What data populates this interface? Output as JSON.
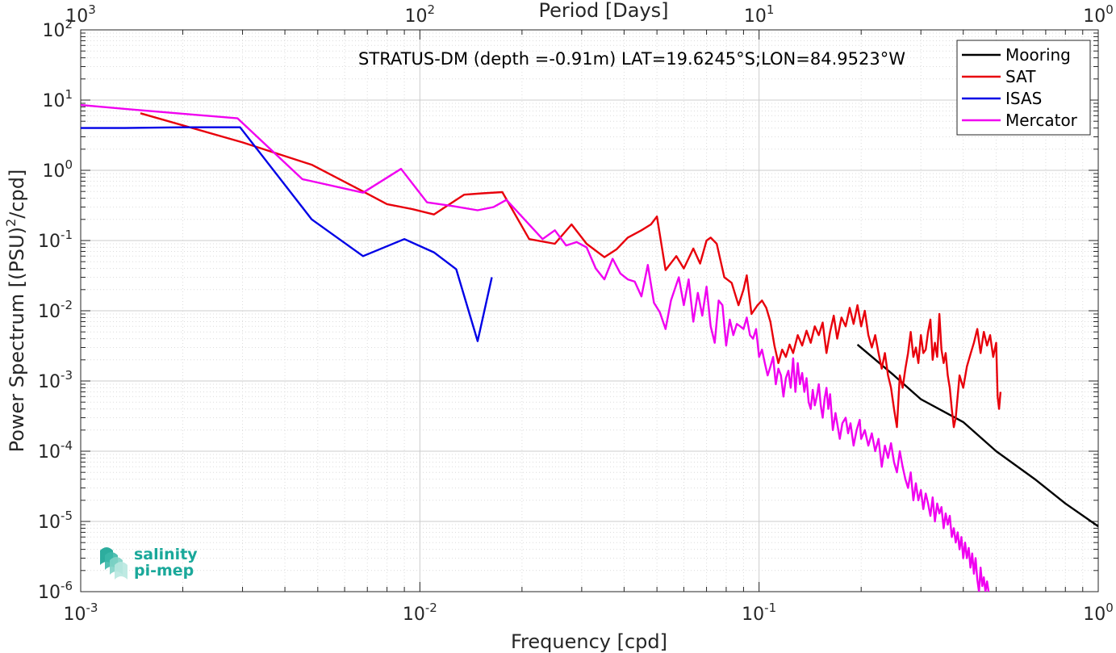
{
  "chart_data": {
    "type": "line",
    "title": "STRATUS-DM (depth =-0.91m) LAT=19.6245°S;LON=84.9523°W",
    "xlabel": "Frequency [cpd]",
    "xlabel_top": "Period [Days]",
    "ylabel": "Power Spectrum [(PSU)^2/cpd]",
    "ylabel_parts": [
      "Power Spectrum [(PSU)",
      "2",
      "/cpd]"
    ],
    "xscale": "log",
    "yscale": "log",
    "xlim": [
      0.001,
      1
    ],
    "ylim": [
      1e-06,
      100
    ],
    "grid": true,
    "legend_position": "top-right",
    "x_ticks": [
      {
        "value": 0.001,
        "base": "10",
        "exp": "-3"
      },
      {
        "value": 0.01,
        "base": "10",
        "exp": "-2"
      },
      {
        "value": 0.1,
        "base": "10",
        "exp": "-1"
      },
      {
        "value": 1,
        "base": "10",
        "exp": "0"
      }
    ],
    "x_ticks_top": [
      {
        "value": 0.001,
        "base": "10",
        "exp": "3"
      },
      {
        "value": 0.01,
        "base": "10",
        "exp": "2"
      },
      {
        "value": 0.1,
        "base": "10",
        "exp": "1"
      },
      {
        "value": 1,
        "base": "10",
        "exp": "0"
      }
    ],
    "y_ticks": [
      {
        "value": 1e-06,
        "base": "10",
        "exp": "-6"
      },
      {
        "value": 1e-05,
        "base": "10",
        "exp": "-5"
      },
      {
        "value": 0.0001,
        "base": "10",
        "exp": "-4"
      },
      {
        "value": 0.001,
        "base": "10",
        "exp": "-3"
      },
      {
        "value": 0.01,
        "base": "10",
        "exp": "-2"
      },
      {
        "value": 0.1,
        "base": "10",
        "exp": "-1"
      },
      {
        "value": 1,
        "base": "10",
        "exp": "0"
      },
      {
        "value": 10,
        "base": "10",
        "exp": "1"
      },
      {
        "value": 100,
        "base": "10",
        "exp": "2"
      }
    ],
    "series": [
      {
        "name": "Mooring",
        "color": "#000000",
        "points": [
          [
            0.195,
            0.0033
          ],
          [
            0.25,
            0.0012
          ],
          [
            0.3,
            0.00055
          ],
          [
            0.4,
            0.00026
          ],
          [
            0.5,
            0.0001
          ],
          [
            0.65,
            4e-05
          ],
          [
            0.8,
            1.8e-05
          ],
          [
            1.0,
            8.5e-06
          ]
        ]
      },
      {
        "name": "SAT",
        "color": "#e8000b",
        "points": [
          [
            0.0015,
            6.5
          ],
          [
            0.003,
            2.5
          ],
          [
            0.0048,
            1.2
          ],
          [
            0.0068,
            0.5
          ],
          [
            0.008,
            0.33
          ],
          [
            0.0095,
            0.28
          ],
          [
            0.011,
            0.235
          ],
          [
            0.0135,
            0.45
          ],
          [
            0.0153,
            0.47
          ],
          [
            0.0175,
            0.49
          ],
          [
            0.021,
            0.105
          ],
          [
            0.025,
            0.09
          ],
          [
            0.028,
            0.17
          ],
          [
            0.031,
            0.09
          ],
          [
            0.035,
            0.058
          ],
          [
            0.038,
            0.075
          ],
          [
            0.041,
            0.11
          ],
          [
            0.045,
            0.14
          ],
          [
            0.048,
            0.17
          ],
          [
            0.05,
            0.22
          ],
          [
            0.053,
            0.038
          ],
          [
            0.057,
            0.06
          ],
          [
            0.06,
            0.04
          ],
          [
            0.064,
            0.077
          ],
          [
            0.067,
            0.047
          ],
          [
            0.07,
            0.1
          ],
          [
            0.072,
            0.11
          ],
          [
            0.075,
            0.09
          ],
          [
            0.079,
            0.03
          ],
          [
            0.083,
            0.025
          ],
          [
            0.087,
            0.012
          ],
          [
            0.09,
            0.02
          ],
          [
            0.092,
            0.032
          ],
          [
            0.095,
            0.009
          ],
          [
            0.099,
            0.012
          ],
          [
            0.102,
            0.014
          ],
          [
            0.105,
            0.011
          ],
          [
            0.108,
            0.007
          ],
          [
            0.111,
            0.0032
          ],
          [
            0.114,
            0.0018
          ],
          [
            0.117,
            0.0028
          ],
          [
            0.12,
            0.0022
          ],
          [
            0.123,
            0.0033
          ],
          [
            0.126,
            0.0025
          ],
          [
            0.13,
            0.0045
          ],
          [
            0.134,
            0.0032
          ],
          [
            0.138,
            0.0052
          ],
          [
            0.142,
            0.0035
          ],
          [
            0.146,
            0.006
          ],
          [
            0.15,
            0.0045
          ],
          [
            0.154,
            0.0068
          ],
          [
            0.158,
            0.0025
          ],
          [
            0.162,
            0.005
          ],
          [
            0.166,
            0.0085
          ],
          [
            0.17,
            0.004
          ],
          [
            0.175,
            0.008
          ],
          [
            0.18,
            0.006
          ],
          [
            0.185,
            0.011
          ],
          [
            0.19,
            0.0065
          ],
          [
            0.195,
            0.012
          ],
          [
            0.2,
            0.006
          ],
          [
            0.205,
            0.01
          ],
          [
            0.21,
            0.0045
          ],
          [
            0.215,
            0.003
          ],
          [
            0.22,
            0.0045
          ],
          [
            0.225,
            0.0025
          ],
          [
            0.23,
            0.0015
          ],
          [
            0.235,
            0.0025
          ],
          [
            0.24,
            0.0012
          ],
          [
            0.245,
            0.0008
          ],
          [
            0.25,
            0.0004
          ],
          [
            0.255,
            0.00022
          ],
          [
            0.26,
            0.0012
          ],
          [
            0.265,
            0.0008
          ],
          [
            0.27,
            0.0015
          ],
          [
            0.275,
            0.0025
          ],
          [
            0.28,
            0.005
          ],
          [
            0.285,
            0.0022
          ],
          [
            0.29,
            0.003
          ],
          [
            0.295,
            0.0018
          ],
          [
            0.3,
            0.0045
          ],
          [
            0.305,
            0.0025
          ],
          [
            0.31,
            0.0028
          ],
          [
            0.315,
            0.005
          ],
          [
            0.32,
            0.0075
          ],
          [
            0.325,
            0.002
          ],
          [
            0.33,
            0.0035
          ],
          [
            0.335,
            0.0022
          ],
          [
            0.34,
            0.009
          ],
          [
            0.345,
            0.0028
          ],
          [
            0.35,
            0.0018
          ],
          [
            0.355,
            0.0025
          ],
          [
            0.36,
            0.0012
          ],
          [
            0.365,
            0.0008
          ],
          [
            0.37,
            0.0004
          ],
          [
            0.375,
            0.00022
          ],
          [
            0.38,
            0.0003
          ],
          [
            0.39,
            0.0012
          ],
          [
            0.4,
            0.0008
          ],
          [
            0.41,
            0.0016
          ],
          [
            0.42,
            0.0024
          ],
          [
            0.43,
            0.0035
          ],
          [
            0.44,
            0.0055
          ],
          [
            0.45,
            0.0025
          ],
          [
            0.46,
            0.005
          ],
          [
            0.47,
            0.0032
          ],
          [
            0.48,
            0.0045
          ],
          [
            0.49,
            0.0022
          ],
          [
            0.5,
            0.0035
          ],
          [
            0.505,
            0.0006
          ],
          [
            0.51,
            0.0004
          ],
          [
            0.515,
            0.0007
          ]
        ]
      },
      {
        "name": "ISAS",
        "color": "#0000e6",
        "points": [
          [
            0.001,
            4.0
          ],
          [
            0.00135,
            4.0
          ],
          [
            0.002,
            4.1
          ],
          [
            0.00295,
            4.1
          ],
          [
            0.0048,
            0.2
          ],
          [
            0.0068,
            0.06
          ],
          [
            0.009,
            0.105
          ],
          [
            0.011,
            0.068
          ],
          [
            0.0128,
            0.039
          ],
          [
            0.0148,
            0.0037
          ],
          [
            0.0163,
            0.03
          ]
        ]
      },
      {
        "name": "Mercator",
        "color": "#f000f0",
        "points": [
          [
            0.001,
            8.5
          ],
          [
            0.00135,
            7.5
          ],
          [
            0.0029,
            5.5
          ],
          [
            0.0045,
            0.75
          ],
          [
            0.0068,
            0.48
          ],
          [
            0.0088,
            1.05
          ],
          [
            0.0105,
            0.35
          ],
          [
            0.0125,
            0.31
          ],
          [
            0.0148,
            0.27
          ],
          [
            0.0165,
            0.3
          ],
          [
            0.018,
            0.38
          ],
          [
            0.023,
            0.105
          ],
          [
            0.025,
            0.14
          ],
          [
            0.027,
            0.085
          ],
          [
            0.029,
            0.095
          ],
          [
            0.031,
            0.08
          ],
          [
            0.033,
            0.04
          ],
          [
            0.035,
            0.028
          ],
          [
            0.037,
            0.055
          ],
          [
            0.039,
            0.034
          ],
          [
            0.041,
            0.028
          ],
          [
            0.043,
            0.026
          ],
          [
            0.045,
            0.016
          ],
          [
            0.047,
            0.045
          ],
          [
            0.049,
            0.013
          ],
          [
            0.051,
            0.0095
          ],
          [
            0.053,
            0.0055
          ],
          [
            0.055,
            0.014
          ],
          [
            0.058,
            0.03
          ],
          [
            0.06,
            0.012
          ],
          [
            0.062,
            0.028
          ],
          [
            0.064,
            0.007
          ],
          [
            0.066,
            0.018
          ],
          [
            0.068,
            0.0085
          ],
          [
            0.07,
            0.022
          ],
          [
            0.072,
            0.006
          ],
          [
            0.074,
            0.0035
          ],
          [
            0.076,
            0.014
          ],
          [
            0.078,
            0.012
          ],
          [
            0.08,
            0.0032
          ],
          [
            0.082,
            0.0075
          ],
          [
            0.084,
            0.0045
          ],
          [
            0.086,
            0.0065
          ],
          [
            0.088,
            0.006
          ],
          [
            0.09,
            0.0055
          ],
          [
            0.092,
            0.008
          ],
          [
            0.094,
            0.0045
          ],
          [
            0.096,
            0.004
          ],
          [
            0.098,
            0.0055
          ],
          [
            0.1,
            0.0022
          ],
          [
            0.102,
            0.0028
          ],
          [
            0.104,
            0.0018
          ],
          [
            0.106,
            0.0012
          ],
          [
            0.108,
            0.0016
          ],
          [
            0.11,
            0.0022
          ],
          [
            0.112,
            0.0009
          ],
          [
            0.114,
            0.0015
          ],
          [
            0.116,
            0.0012
          ],
          [
            0.118,
            0.0006
          ],
          [
            0.12,
            0.0011
          ],
          [
            0.122,
            0.0014
          ],
          [
            0.124,
            0.0008
          ],
          [
            0.126,
            0.0021
          ],
          [
            0.128,
            0.0007
          ],
          [
            0.13,
            0.0018
          ],
          [
            0.132,
            0.0009
          ],
          [
            0.134,
            0.0013
          ],
          [
            0.136,
            0.0007
          ],
          [
            0.138,
            0.0011
          ],
          [
            0.14,
            0.0005
          ],
          [
            0.142,
            0.0004
          ],
          [
            0.144,
            0.00075
          ],
          [
            0.146,
            0.00045
          ],
          [
            0.148,
            0.0006
          ],
          [
            0.15,
            0.0009
          ],
          [
            0.152,
            0.00045
          ],
          [
            0.154,
            0.0003
          ],
          [
            0.156,
            0.00055
          ],
          [
            0.158,
            0.0008
          ],
          [
            0.16,
            0.0004
          ],
          [
            0.162,
            0.00065
          ],
          [
            0.165,
            0.0002
          ],
          [
            0.168,
            0.00035
          ],
          [
            0.17,
            0.00025
          ],
          [
            0.173,
            0.00015
          ],
          [
            0.176,
            0.00025
          ],
          [
            0.18,
            0.0003
          ],
          [
            0.183,
            0.00018
          ],
          [
            0.186,
            0.00025
          ],
          [
            0.19,
            0.00012
          ],
          [
            0.194,
            0.0002
          ],
          [
            0.198,
            0.00028
          ],
          [
            0.2,
            0.00015
          ],
          [
            0.205,
            0.0002
          ],
          [
            0.21,
            0.00012
          ],
          [
            0.215,
            0.00018
          ],
          [
            0.22,
            0.0001
          ],
          [
            0.225,
            0.00015
          ],
          [
            0.23,
            6e-05
          ],
          [
            0.235,
            0.00012
          ],
          [
            0.24,
            8e-05
          ],
          [
            0.245,
            0.00013
          ],
          [
            0.25,
            7e-05
          ],
          [
            0.255,
            5e-05
          ],
          [
            0.26,
            0.0001
          ],
          [
            0.265,
            6e-05
          ],
          [
            0.27,
            4e-05
          ],
          [
            0.275,
            3e-05
          ],
          [
            0.28,
            5e-05
          ],
          [
            0.285,
            2e-05
          ],
          [
            0.29,
            3.5e-05
          ],
          [
            0.295,
            2e-05
          ],
          [
            0.3,
            2.8e-05
          ],
          [
            0.305,
            1.5e-05
          ],
          [
            0.31,
            2.5e-05
          ],
          [
            0.315,
            1.8e-05
          ],
          [
            0.32,
            1.2e-05
          ],
          [
            0.325,
            2.2e-05
          ],
          [
            0.33,
            1e-05
          ],
          [
            0.335,
            1.8e-05
          ],
          [
            0.34,
            1.3e-05
          ],
          [
            0.345,
            1.6e-05
          ],
          [
            0.35,
            8e-06
          ],
          [
            0.355,
            1.3e-05
          ],
          [
            0.36,
            9e-06
          ],
          [
            0.365,
            1.2e-05
          ],
          [
            0.37,
            6e-06
          ],
          [
            0.375,
            8e-06
          ],
          [
            0.38,
            5e-06
          ],
          [
            0.385,
            7e-06
          ],
          [
            0.39,
            4e-06
          ],
          [
            0.395,
            6e-06
          ],
          [
            0.4,
            3e-06
          ],
          [
            0.405,
            5e-06
          ],
          [
            0.41,
            3e-06
          ],
          [
            0.415,
            4.2e-06
          ],
          [
            0.42,
            2.2e-06
          ],
          [
            0.425,
            3.5e-06
          ],
          [
            0.43,
            1.8e-06
          ],
          [
            0.435,
            3e-06
          ],
          [
            0.44,
            1.5e-06
          ],
          [
            0.445,
            1e-06
          ],
          [
            0.45,
            2.2e-06
          ],
          [
            0.455,
            1.2e-06
          ],
          [
            0.46,
            1.6e-06
          ],
          [
            0.465,
            1e-06
          ],
          [
            0.47,
            1.4e-06
          ],
          [
            0.475,
            1e-06
          ]
        ]
      }
    ]
  },
  "logo": {
    "line1": "salinity",
    "line2": "pi-mep",
    "colors": [
      "#16a493",
      "#3cb8a8",
      "#7fd3c6",
      "#b8e8e0"
    ]
  },
  "axes_color": "#262626",
  "grid_color": "#dcdcdc"
}
